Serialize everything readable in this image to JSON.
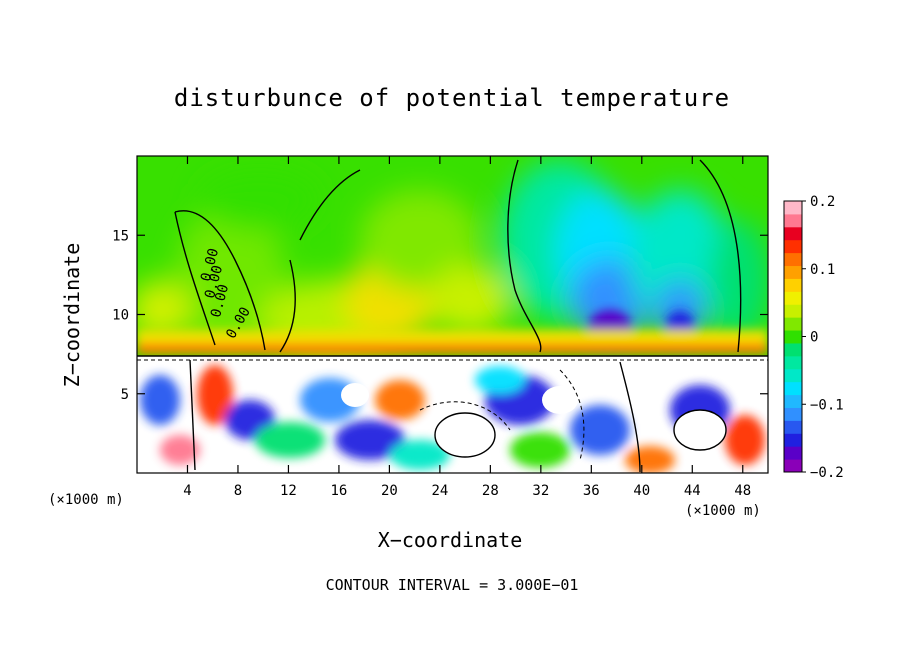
{
  "chart_data": {
    "type": "heatmap",
    "title": "disturbunce of potential temperature",
    "xlabel": "X−coordinate",
    "ylabel": "Z−coordinate",
    "x_unit_label": "(×1000 m)",
    "x_unit_label_right": "(×1000 m)",
    "footer": "CONTOUR INTERVAL = 3.000E−01",
    "xlim": [
      0,
      50
    ],
    "ylim": [
      0,
      20
    ],
    "x_ticks": [
      "4",
      "8",
      "12",
      "16",
      "20",
      "24",
      "28",
      "32",
      "36",
      "40",
      "44",
      "48"
    ],
    "x_tick_values": [
      4,
      8,
      12,
      16,
      20,
      24,
      28,
      32,
      36,
      40,
      44,
      48
    ],
    "y_ticks": [
      "5",
      "10",
      "15"
    ],
    "y_tick_values": [
      5,
      10,
      15
    ],
    "colorbar": {
      "min": -0.2,
      "max": 0.2,
      "tick_labels": [
        "0.2",
        "0.1",
        "0",
        "−0.1",
        "−0.2"
      ],
      "tick_values": [
        0.2,
        0.1,
        0,
        -0.1,
        -0.2
      ],
      "colors": [
        "#8a00b8",
        "#5a00c8",
        "#2020e0",
        "#2858f0",
        "#3090ff",
        "#20b8ff",
        "#00e0ff",
        "#00e8c8",
        "#00e8a0",
        "#00e070",
        "#30e000",
        "#80e800",
        "#c8f000",
        "#f0f000",
        "#ffd000",
        "#ffa000",
        "#ff7000",
        "#ff3000",
        "#e80020",
        "#ff7890",
        "#ffb8c8"
      ]
    },
    "contour_labels": [
      "0.00",
      "0.00",
      "0.00",
      "0.00"
    ]
  }
}
